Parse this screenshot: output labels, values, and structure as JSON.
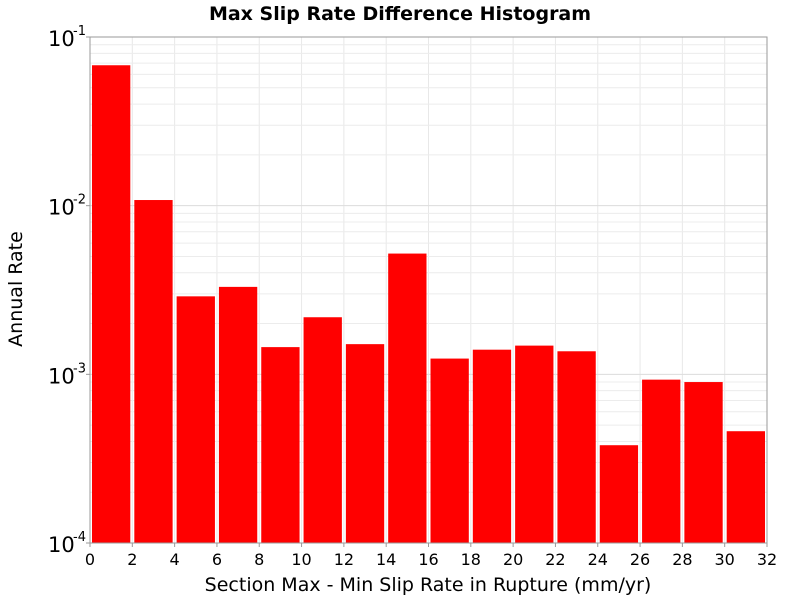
{
  "chart_data": {
    "type": "bar",
    "title": "Max Slip Rate Difference Histogram",
    "xlabel": "Section Max - Min Slip Rate in Rupture (mm/yr)",
    "ylabel": "Annual Rate",
    "y_scale": "log",
    "xlim": [
      0,
      32
    ],
    "ylim": [
      0.0001,
      0.1
    ],
    "grid": true,
    "bar_color": "#ff0000",
    "bin_width": 2,
    "x_ticks": [
      "0",
      "2",
      "4",
      "6",
      "8",
      "10",
      "12",
      "14",
      "16",
      "18",
      "20",
      "22",
      "24",
      "26",
      "28",
      "30",
      "32"
    ],
    "y_ticks": [
      {
        "base": "10",
        "exp": "-4",
        "value": 0.0001
      },
      {
        "base": "10",
        "exp": "-3",
        "value": 0.001
      },
      {
        "base": "10",
        "exp": "-2",
        "value": 0.01
      },
      {
        "base": "10",
        "exp": "-1",
        "value": 0.1
      }
    ],
    "bins": [
      {
        "x_start": 0,
        "x_end": 2,
        "value": 0.068
      },
      {
        "x_start": 2,
        "x_end": 4,
        "value": 0.0108
      },
      {
        "x_start": 4,
        "x_end": 6,
        "value": 0.0029
      },
      {
        "x_start": 6,
        "x_end": 8,
        "value": 0.0033
      },
      {
        "x_start": 8,
        "x_end": 10,
        "value": 0.00145
      },
      {
        "x_start": 10,
        "x_end": 12,
        "value": 0.00218
      },
      {
        "x_start": 12,
        "x_end": 14,
        "value": 0.00151
      },
      {
        "x_start": 14,
        "x_end": 16,
        "value": 0.0052
      },
      {
        "x_start": 16,
        "x_end": 18,
        "value": 0.00124
      },
      {
        "x_start": 18,
        "x_end": 20,
        "value": 0.0014
      },
      {
        "x_start": 20,
        "x_end": 22,
        "value": 0.00148
      },
      {
        "x_start": 22,
        "x_end": 24,
        "value": 0.00137
      },
      {
        "x_start": 24,
        "x_end": 26,
        "value": 0.00038
      },
      {
        "x_start": 26,
        "x_end": 28,
        "value": 0.00093
      },
      {
        "x_start": 28,
        "x_end": 30,
        "value": 0.0009
      },
      {
        "x_start": 30,
        "x_end": 32,
        "value": 0.00046
      }
    ]
  }
}
